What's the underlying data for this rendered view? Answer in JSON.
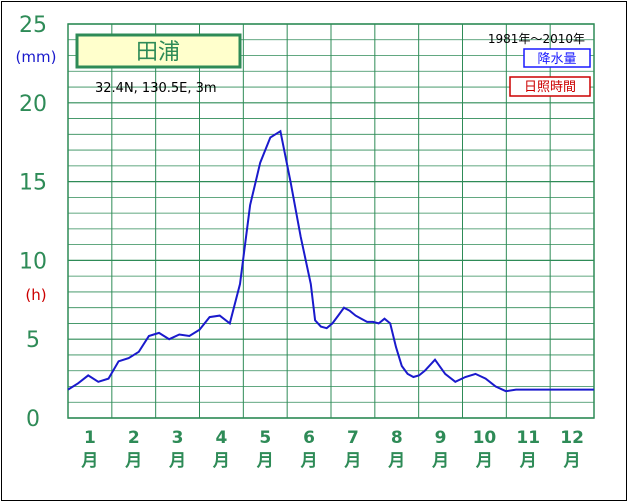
{
  "chart_data": {
    "type": "line",
    "title": "田浦",
    "subtitle": "32.4N, 130.5E, 3m",
    "period": "1981年〜2010年",
    "ylabel_left": "(mm)",
    "ylabel_right": "(h)",
    "ylim": [
      0,
      25
    ],
    "yticks": [
      "0",
      "5",
      "10",
      "15",
      "20",
      "25"
    ],
    "month_numbers": [
      "1",
      "2",
      "3",
      "4",
      "5",
      "6",
      "7",
      "8",
      "9",
      "10",
      "11",
      "12"
    ],
    "month_unit": "月",
    "legend": [
      {
        "label": "降水量",
        "color": "#1a1aff"
      },
      {
        "label": "日照時間",
        "color": "#cc0000"
      }
    ],
    "grid": true,
    "colors": {
      "grid": "#2e8b57",
      "axis_text": "#2e8b57",
      "series": "#1a1acc",
      "title_box_fill": "#ffffcc"
    },
    "series": [
      {
        "name": "降水量",
        "x_days": [
          1,
          8,
          15,
          22,
          29,
          36,
          43,
          50,
          57,
          64,
          71,
          78,
          85,
          92,
          99,
          106,
          113,
          120,
          127,
          134,
          141,
          148,
          155,
          162,
          169,
          172,
          176,
          180,
          184,
          188,
          192,
          196,
          200,
          204,
          208,
          212,
          216,
          220,
          224,
          228,
          232,
          236,
          240,
          244,
          248,
          255,
          262,
          269,
          276,
          283,
          290,
          297,
          304,
          311,
          318,
          325,
          332,
          339,
          346,
          353,
          360,
          365
        ],
        "values": [
          1.8,
          2.2,
          2.7,
          2.3,
          2.5,
          3.6,
          3.8,
          4.2,
          5.2,
          5.4,
          5.0,
          5.3,
          5.2,
          5.6,
          6.4,
          6.5,
          6.0,
          8.5,
          13.5,
          16.2,
          17.8,
          18.2,
          15.0,
          11.5,
          8.5,
          6.2,
          5.8,
          5.7,
          6.0,
          6.5,
          7.0,
          6.8,
          6.5,
          6.3,
          6.1,
          6.1,
          6.0,
          6.3,
          6.0,
          4.5,
          3.3,
          2.8,
          2.6,
          2.7,
          3.0,
          3.7,
          2.8,
          2.3,
          2.6,
          2.8,
          2.5,
          2.0,
          1.7,
          1.8,
          1.8,
          1.8,
          1.8,
          1.8,
          1.8,
          1.8,
          1.8,
          1.8
        ]
      }
    ]
  }
}
